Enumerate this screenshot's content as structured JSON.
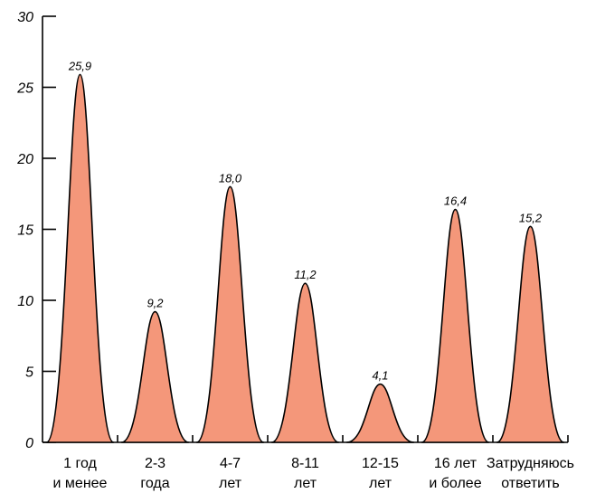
{
  "colors": {
    "peak_fill": "#F4977A",
    "stroke": "#000000"
  },
  "chart_data": {
    "type": "area",
    "categories": [
      [
        "1 год",
        "и менее"
      ],
      [
        "2-3",
        "года"
      ],
      [
        "4-7",
        "лет"
      ],
      [
        "8-11",
        "лет"
      ],
      [
        "12-15",
        "лет"
      ],
      [
        "16 лет",
        "и более"
      ],
      [
        "Затрудняюсь",
        "ответить"
      ]
    ],
    "values": [
      25.9,
      9.2,
      18.0,
      11.2,
      4.1,
      16.4,
      15.2
    ],
    "data_labels": [
      "25,9",
      "9,2",
      "18,0",
      "11,2",
      "4,1",
      "16,4",
      "15,2"
    ],
    "ylim": [
      0,
      30
    ],
    "yticks": [
      0,
      5,
      10,
      15,
      20,
      25,
      30
    ],
    "grid": false
  }
}
